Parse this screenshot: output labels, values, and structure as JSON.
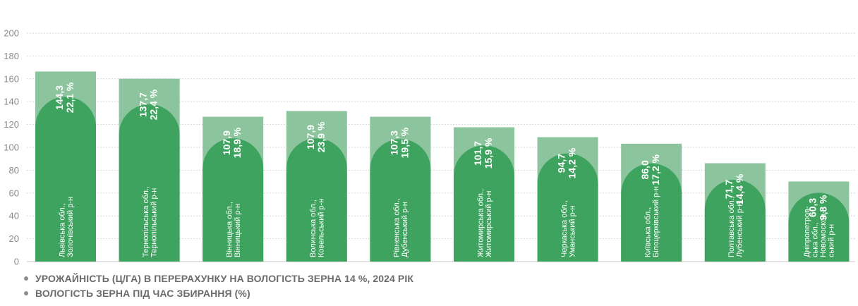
{
  "chart_data": {
    "type": "bar",
    "categories": [
      [
        "Львівська обл.,",
        "Золочівський р-н"
      ],
      [
        "Тернопільська обл.,",
        "Тернопільський р-н"
      ],
      [
        "Вінницька обл.,",
        "Вінницький р-н"
      ],
      [
        "Волинська обл.,",
        "Ковельський р-н"
      ],
      [
        "Рівненська обл.,",
        "Дубенський р-н"
      ],
      [
        "Житомирська обл.,",
        "Житомирський р-н"
      ],
      [
        "Черкаська обл.,",
        "Уманський р-н"
      ],
      [
        "Київська обл.,",
        "Білоцерківський р-н"
      ],
      [
        "Полтавська обл.,",
        "Лубенський р-н"
      ],
      [
        "Дніпропетров-",
        "ська обл.,",
        "Новомосков-",
        "ський р-н"
      ]
    ],
    "series": [
      {
        "name": "УРОЖАЙНІСТЬ (Ц/ГА) В ПЕРЕРАХУНКУ НА ВОЛОГІСТЬ ЗЕРНА 14 %, 2024 РІК",
        "values": [
          144.3,
          137.7,
          107.9,
          107.9,
          107.3,
          101.7,
          94.7,
          86.0,
          71.7,
          60.3
        ],
        "labels": [
          "144,3",
          "137,7",
          "107,9",
          "107,9",
          "107,3",
          "101,7",
          "94,7",
          "86,0",
          "71,7",
          "60,3"
        ]
      },
      {
        "name": "ВОЛОГІСТЬ ЗЕРНА ПІД ЧАС ЗБИРАННЯ (%)",
        "values": [
          22.1,
          22.4,
          18.9,
          23.9,
          19.5,
          15.9,
          14.2,
          17.2,
          14.4,
          9.8
        ],
        "labels": [
          "22,1 %",
          "22,4 %",
          "18,9 %",
          "23,9 %",
          "19,5 %",
          "15,9 %",
          "14,2 %",
          "17,2 %",
          "14,4 %",
          "9,8 %"
        ]
      }
    ],
    "stacked": true,
    "ylim": [
      0,
      200
    ],
    "yticks": [
      0,
      20,
      40,
      60,
      80,
      100,
      120,
      140,
      160,
      180,
      200
    ],
    "grid": true,
    "legend_position": "bottom-left",
    "xlabel": "",
    "ylabel": ""
  },
  "colors": {
    "yield": "#3ea35e",
    "moisture": "#8cc49d",
    "grid": "#c9c9c9",
    "tick": "#8a8a8a",
    "label_text": "#ffffff",
    "legend_text": "#6b6b6b",
    "legend_dot": "#8c8c8c"
  }
}
